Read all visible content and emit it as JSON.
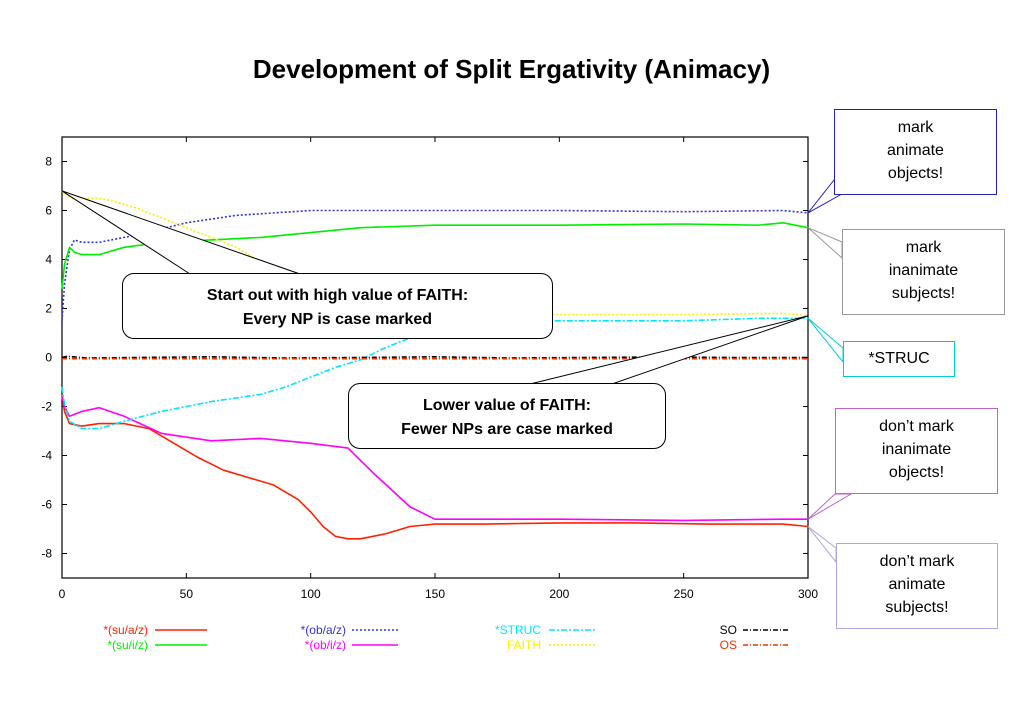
{
  "slide": {
    "title": "Development of Split Ergativity (Animacy)",
    "callouts": [
      {
        "id": "mark-animate-objects",
        "lines": [
          "mark",
          "animate",
          "objects!"
        ],
        "border": "#2222bb",
        "target_series": 1
      },
      {
        "id": "mark-inanimate-subjects",
        "lines": [
          "mark",
          "inanimate",
          "subjects!"
        ],
        "border": "#999999",
        "target_series": 2
      },
      {
        "id": "struc",
        "lines": [
          "*STRUC"
        ],
        "border": "#00ccdd",
        "target_series": 4
      },
      {
        "id": "dont-mark-inanimate-objects",
        "lines": [
          "don’t mark",
          "inanimate",
          "objects!"
        ],
        "border": "#bb66cc",
        "target_series": 3
      },
      {
        "id": "dont-mark-animate-subjects",
        "lines": [
          "don’t mark",
          "animate",
          "subjects!"
        ],
        "border": "#aaaadd",
        "target_series": 0
      }
    ],
    "notes": [
      {
        "id": "high-faith",
        "lines": [
          "Start out with high value of FAITH:",
          "Every NP is case marked"
        ]
      },
      {
        "id": "lower-faith",
        "lines": [
          "Lower value of FAITH:",
          "Fewer NPs are case marked"
        ]
      }
    ]
  },
  "chart_data": {
    "type": "line",
    "xlim": [
      0,
      300
    ],
    "ylim": [
      -9,
      9
    ],
    "xticks": [
      0,
      50,
      100,
      150,
      200,
      250,
      300
    ],
    "yticks": [
      8,
      6,
      4,
      2,
      0,
      -2,
      -4,
      -6,
      -8
    ],
    "grid": false,
    "legend_position": "bottom",
    "series": [
      {
        "name": "*(su/a/z)",
        "color": "#ff2200",
        "dash": "",
        "x": [
          0,
          1,
          3,
          8,
          15,
          25,
          35,
          45,
          55,
          65,
          75,
          85,
          95,
          100,
          105,
          110,
          115,
          120,
          130,
          140,
          150,
          170,
          200,
          230,
          260,
          280,
          290,
          300
        ],
        "y": [
          -1.5,
          -2.2,
          -2.7,
          -2.8,
          -2.7,
          -2.7,
          -2.9,
          -3.5,
          -4.1,
          -4.6,
          -4.9,
          -5.2,
          -5.8,
          -6.3,
          -6.9,
          -7.3,
          -7.4,
          -7.4,
          -7.2,
          -6.9,
          -6.8,
          -6.8,
          -6.75,
          -6.75,
          -6.8,
          -6.8,
          -6.8,
          -6.9
        ]
      },
      {
        "name": "*(ob/a/z)",
        "color": "#3333dd",
        "dash": "2,2",
        "x": [
          0,
          1,
          3,
          5,
          8,
          15,
          30,
          50,
          70,
          100,
          130,
          170,
          200,
          250,
          290,
          300
        ],
        "y": [
          1.5,
          3.0,
          4.4,
          4.8,
          4.7,
          4.7,
          5.0,
          5.5,
          5.8,
          6.0,
          6.0,
          6.0,
          6.0,
          5.95,
          6.0,
          5.9
        ]
      },
      {
        "name": "*(su/i/z)",
        "color": "#00ee00",
        "dash": "",
        "x": [
          0,
          1,
          3,
          5,
          8,
          15,
          25,
          40,
          60,
          80,
          100,
          120,
          150,
          200,
          250,
          280,
          290,
          300
        ],
        "y": [
          2.8,
          3.8,
          4.5,
          4.3,
          4.2,
          4.2,
          4.5,
          4.7,
          4.8,
          4.9,
          5.1,
          5.3,
          5.4,
          5.4,
          5.45,
          5.4,
          5.5,
          5.3
        ]
      },
      {
        "name": "*(ob/i/z)",
        "color": "#ff00ff",
        "dash": "",
        "x": [
          0,
          1,
          3,
          8,
          15,
          25,
          40,
          60,
          80,
          100,
          115,
          125,
          140,
          150,
          170,
          200,
          250,
          290,
          300
        ],
        "y": [
          -1.6,
          -2.0,
          -2.4,
          -2.2,
          -2.05,
          -2.4,
          -3.1,
          -3.4,
          -3.3,
          -3.5,
          -3.7,
          -4.7,
          -6.1,
          -6.6,
          -6.6,
          -6.6,
          -6.65,
          -6.6,
          -6.6
        ]
      },
      {
        "name": "*STRUC",
        "color": "#00e6ff",
        "dash": "6,2,2,2",
        "x": [
          0,
          1,
          3,
          8,
          15,
          25,
          40,
          60,
          80,
          90,
          100,
          110,
          120,
          130,
          140,
          150,
          170,
          200,
          250,
          280,
          300
        ],
        "y": [
          -1.2,
          -1.9,
          -2.6,
          -2.9,
          -2.9,
          -2.6,
          -2.2,
          -1.8,
          -1.5,
          -1.2,
          -0.8,
          -0.4,
          -0.1,
          0.4,
          0.8,
          1.3,
          1.5,
          1.5,
          1.5,
          1.6,
          1.6
        ]
      },
      {
        "name": "FAITH",
        "color": "#ffee00",
        "dash": "2,2",
        "x": [
          0,
          1,
          5,
          10,
          15,
          20,
          30,
          40,
          50,
          60,
          70,
          80,
          90,
          100,
          120,
          140,
          150,
          160,
          180,
          200,
          250,
          290,
          300
        ],
        "y": [
          6.8,
          6.7,
          6.45,
          6.5,
          6.5,
          6.4,
          6.1,
          5.7,
          5.3,
          4.9,
          4.5,
          3.9,
          3.4,
          2.8,
          2.1,
          1.85,
          1.8,
          1.75,
          1.75,
          1.75,
          1.75,
          1.8,
          1.7
        ]
      },
      {
        "name": "SO",
        "color": "#000000",
        "dash": "5,2,1,2",
        "x": [
          0,
          2,
          10,
          30,
          60,
          90,
          120,
          150,
          180,
          210,
          240,
          270,
          300
        ],
        "y": [
          0.0,
          0.05,
          -0.02,
          0.0,
          0.03,
          -0.02,
          0.0,
          0.03,
          -0.02,
          0.0,
          0.02,
          0.0,
          0.0
        ]
      },
      {
        "name": "OS",
        "color": "#ee3300",
        "dash": "5,2,1,2",
        "x": [
          0,
          300
        ],
        "y": [
          -0.05,
          -0.05
        ]
      }
    ]
  }
}
